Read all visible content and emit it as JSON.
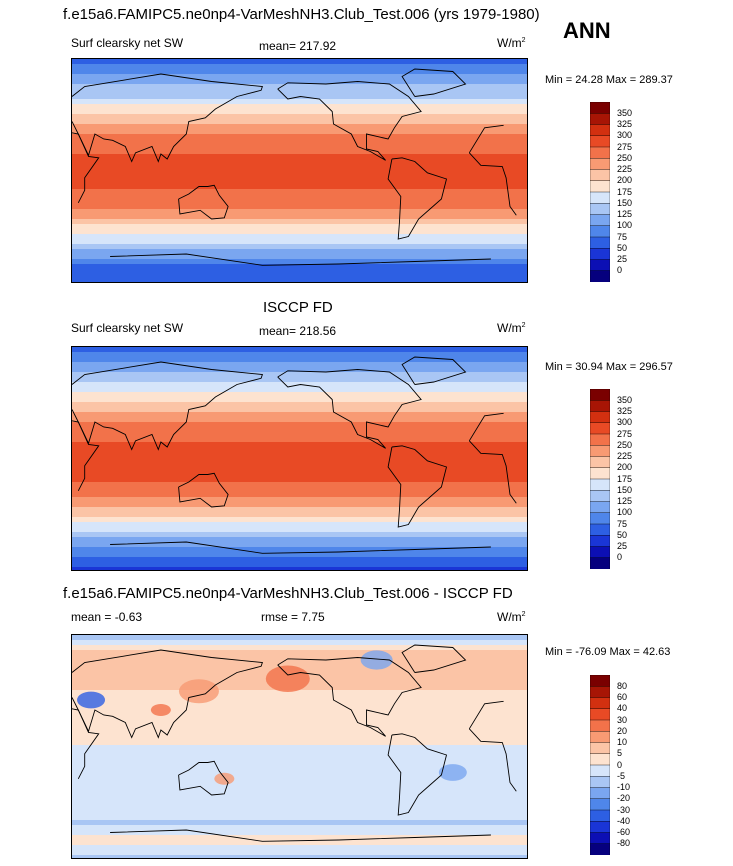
{
  "header": {
    "title": "f.e15a6.FAMIPC5.ne0np4-VarMeshNH3.Club_Test.006 (yrs 1979-1980)",
    "season": "ANN"
  },
  "panels": [
    {
      "id": "model",
      "heading": "",
      "left_label": "Surf clearsky net SW",
      "stat_label": "mean=",
      "stat_value": "217.92",
      "stat2_label": "",
      "stat2_value": "",
      "units": "W/m",
      "units_sup": "2",
      "min_label": "Min =",
      "min_value": "24.28",
      "max_label": "Max =",
      "max_value": "289.37",
      "scale": "abs"
    },
    {
      "id": "obs",
      "heading": "ISCCP FD",
      "left_label": "Surf clearsky net SW",
      "stat_label": "mean=",
      "stat_value": "218.56",
      "stat2_label": "",
      "stat2_value": "",
      "units": "W/m",
      "units_sup": "2",
      "min_label": "Min =",
      "min_value": "30.94",
      "max_label": "Max =",
      "max_value": "296.57",
      "scale": "abs"
    },
    {
      "id": "diff",
      "heading": "f.e15a6.FAMIPC5.ne0np4-VarMeshNH3.Club_Test.006 - ISCCP FD",
      "left_label": "mean =",
      "left_value": "-0.63",
      "stat_label": "rmse =",
      "stat_value": "7.75",
      "units": "W/m",
      "units_sup": "2",
      "min_label": "Min =",
      "min_value": "-76.09",
      "max_label": "Max =",
      "max_value": "42.63",
      "scale": "diff"
    }
  ],
  "chart_data": [
    {
      "type": "heatmap",
      "panel": "model",
      "field": "Surf clearsky net SW",
      "units": "W/m2",
      "mean": 217.92,
      "min": 24.28,
      "max": 289.37,
      "colorbar_levels": [
        350,
        325,
        300,
        275,
        250,
        225,
        200,
        175,
        150,
        125,
        100,
        75,
        50,
        25,
        0
      ],
      "zonal_profile": {
        "lat": [
          90,
          75,
          60,
          45,
          30,
          15,
          0,
          -15,
          -30,
          -45,
          -60,
          -75,
          -90
        ],
        "value": [
          60,
          110,
          150,
          205,
          250,
          275,
          280,
          275,
          250,
          195,
          140,
          75,
          50
        ]
      }
    },
    {
      "type": "heatmap",
      "panel": "obs",
      "field": "Surf clearsky net SW",
      "units": "W/m2",
      "mean": 218.56,
      "min": 30.94,
      "max": 296.57,
      "colorbar_levels": [
        350,
        325,
        300,
        275,
        250,
        225,
        200,
        175,
        150,
        125,
        100,
        75,
        50,
        25,
        0
      ],
      "zonal_profile": {
        "lat": [
          90,
          75,
          60,
          45,
          30,
          15,
          0,
          -15,
          -30,
          -45,
          -60,
          -75,
          -90
        ],
        "value": [
          65,
          115,
          155,
          210,
          250,
          275,
          282,
          277,
          252,
          198,
          140,
          80,
          45
        ]
      }
    },
    {
      "type": "heatmap",
      "panel": "diff",
      "units": "W/m2",
      "mean": -0.63,
      "rmse": 7.75,
      "min": -76.09,
      "max": 42.63,
      "colorbar_levels": [
        80,
        60,
        40,
        30,
        20,
        10,
        5,
        0,
        -5,
        -10,
        -20,
        -30,
        -40,
        -60,
        -80
      ],
      "zonal_profile": {
        "lat": [
          90,
          75,
          60,
          45,
          30,
          15,
          0,
          -15,
          -30,
          -45,
          -60,
          -75,
          -90
        ],
        "value": [
          -8,
          8,
          6,
          5,
          4,
          2,
          0,
          -2,
          -3,
          -2,
          -5,
          4,
          -10
        ]
      }
    }
  ],
  "colors": {
    "abs_palette": [
      "#06007e",
      "#0c0fb4",
      "#1a35d6",
      "#2d5fe3",
      "#4f86ea",
      "#7aa6f0",
      "#a9c6f4",
      "#d6e5fa",
      "#fde3d0",
      "#fbc4a6",
      "#f89a73",
      "#f2724a",
      "#e84a25",
      "#d23010",
      "#a71505",
      "#7a0000"
    ],
    "diff_palette": [
      "#06007e",
      "#0c0fb4",
      "#1a35d6",
      "#2d5fe3",
      "#4f86ea",
      "#7aa6f0",
      "#a9c6f4",
      "#d6e5fa",
      "#fde3d0",
      "#fbc4a6",
      "#f89a73",
      "#f2724a",
      "#e84a25",
      "#d23010",
      "#a71505",
      "#7a0000"
    ],
    "coastline": "#000000"
  }
}
